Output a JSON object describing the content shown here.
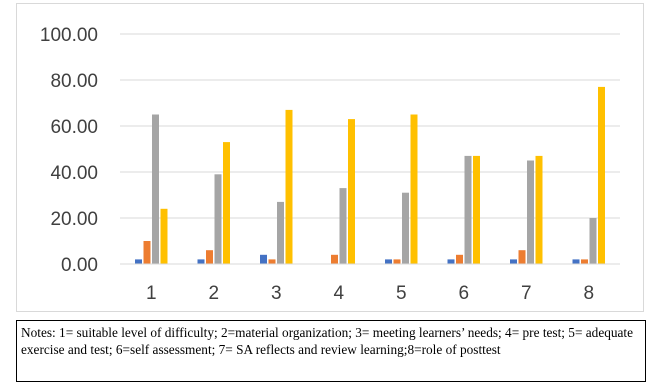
{
  "chart_data": {
    "type": "bar",
    "categories": [
      "1",
      "2",
      "3",
      "4",
      "5",
      "6",
      "7",
      "8"
    ],
    "series": [
      {
        "values": [
          2,
          2,
          4,
          0,
          2,
          2,
          2,
          2
        ],
        "color": "#4472c4"
      },
      {
        "values": [
          10,
          6,
          2,
          4,
          2,
          4,
          6,
          2
        ],
        "color": "#ed7d31"
      },
      {
        "values": [
          65,
          39,
          27,
          33,
          31,
          47,
          45,
          20
        ],
        "color": "#a5a5a5"
      },
      {
        "values": [
          24,
          53,
          67,
          63,
          65,
          47,
          47,
          77
        ],
        "color": "#ffc000"
      }
    ],
    "y_ticks": [
      "0.00",
      "20.00",
      "40.00",
      "60.00",
      "80.00",
      "100.00"
    ],
    "ylim": [
      0,
      100
    ],
    "grid": true,
    "legend": "none"
  },
  "notes": "Notes: 1= suitable level of difficulty; 2=material organization; 3= meeting learners’ needs; 4= pre test; 5= adequate exercise and test; 6=self assessment; 7= SA reflects and review learning;8=role of posttest"
}
